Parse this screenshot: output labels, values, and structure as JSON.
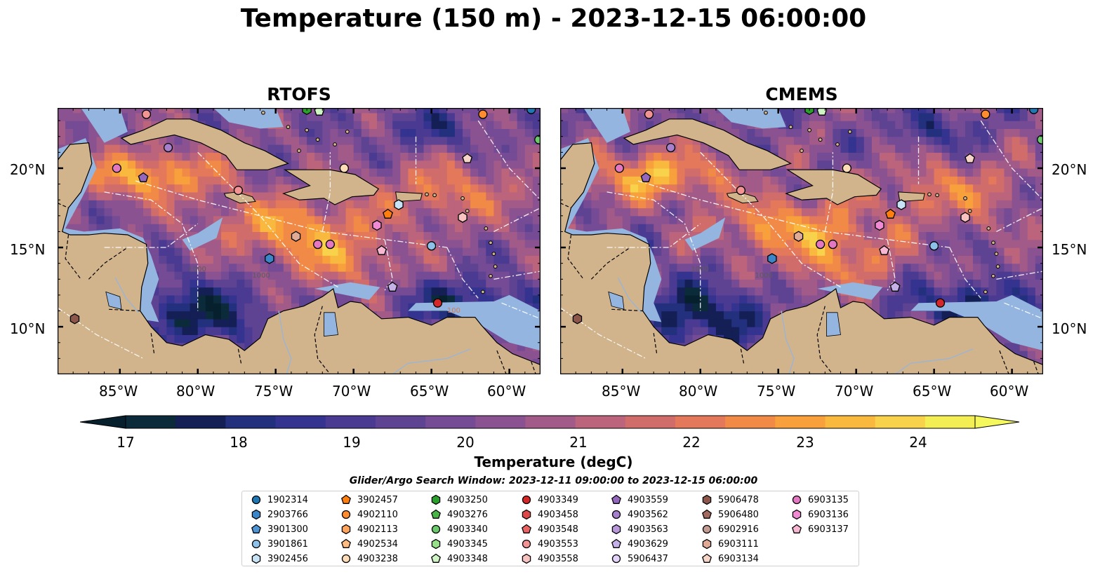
{
  "title": "Temperature (150 m) - 2023-12-15 06:00:00",
  "panels": [
    {
      "title": "RTOFS"
    },
    {
      "title": "CMEMS"
    }
  ],
  "colorbar": {
    "label": "Temperature (degC)",
    "ticks": [
      "17",
      "18",
      "19",
      "20",
      "21",
      "22",
      "23",
      "24"
    ],
    "colors": [
      "#0b2a3a",
      "#141f55",
      "#23307e",
      "#34338f",
      "#4a3a92",
      "#5f4393",
      "#744b94",
      "#8a5291",
      "#a25a88",
      "#bb647b",
      "#d06d6b",
      "#e3785a",
      "#f18a47",
      "#f7a03c",
      "#f9b83e",
      "#f7d24a",
      "#f4ee55"
    ],
    "extend_low": "#06202e",
    "extend_high": "#f4f85c"
  },
  "map": {
    "lon_labels": [
      "85°W",
      "80°W",
      "75°W",
      "70°W",
      "65°W",
      "60°W"
    ],
    "lat_labels": [
      "20°N",
      "15°N",
      "10°N"
    ],
    "contour_labels": [
      "1000",
      "1000",
      "100"
    ]
  },
  "legend": {
    "title": "Glider/Argo Search Window: 2023-12-11 09:00:00 to 2023-12-15 06:00:00",
    "items": [
      {
        "label": "1902314",
        "marker": "circle",
        "color": "#1f77b4"
      },
      {
        "label": "2903766",
        "marker": "hexagon",
        "color": "#3a86c8"
      },
      {
        "label": "3901300",
        "marker": "pentagon",
        "color": "#4e95d6"
      },
      {
        "label": "3901861",
        "marker": "circle",
        "color": "#8ec1ea"
      },
      {
        "label": "3902456",
        "marker": "hexagon",
        "color": "#c7e4f7"
      },
      {
        "label": "3902457",
        "marker": "pentagon",
        "color": "#ff7f0e"
      },
      {
        "label": "4902110",
        "marker": "circle",
        "color": "#ff8c2e"
      },
      {
        "label": "4902113",
        "marker": "hexagon",
        "color": "#ffa45c"
      },
      {
        "label": "4902534",
        "marker": "pentagon",
        "color": "#ffbb80"
      },
      {
        "label": "4903238",
        "marker": "circle",
        "color": "#ffdcb8"
      },
      {
        "label": "4903250",
        "marker": "hexagon",
        "color": "#2ca02c"
      },
      {
        "label": "4903276",
        "marker": "pentagon",
        "color": "#47b647"
      },
      {
        "label": "4903340",
        "marker": "circle",
        "color": "#6cc96c"
      },
      {
        "label": "4903345",
        "marker": "hexagon",
        "color": "#98df8a"
      },
      {
        "label": "4903348",
        "marker": "pentagon",
        "color": "#cff5c5"
      },
      {
        "label": "4903349",
        "marker": "circle",
        "color": "#d62728"
      },
      {
        "label": "4903458",
        "marker": "hexagon",
        "color": "#e04848"
      },
      {
        "label": "4903548",
        "marker": "pentagon",
        "color": "#ea6464"
      },
      {
        "label": "4903553",
        "marker": "circle",
        "color": "#f29494"
      },
      {
        "label": "4903558",
        "marker": "hexagon",
        "color": "#f8c2c0"
      },
      {
        "label": "4903559",
        "marker": "pentagon",
        "color": "#9467bd"
      },
      {
        "label": "4903562",
        "marker": "circle",
        "color": "#a680cc"
      },
      {
        "label": "4903563",
        "marker": "hexagon",
        "color": "#b898db"
      },
      {
        "label": "4903629",
        "marker": "pentagon",
        "color": "#c5b0e8"
      },
      {
        "label": "5906437",
        "marker": "circle",
        "color": "#e3d2fa"
      },
      {
        "label": "5906478",
        "marker": "hexagon",
        "color": "#8c564b"
      },
      {
        "label": "5906480",
        "marker": "pentagon",
        "color": "#a36b5f"
      },
      {
        "label": "6902916",
        "marker": "circle",
        "color": "#c49c94"
      },
      {
        "label": "6903111",
        "marker": "hexagon",
        "color": "#e0aa96"
      },
      {
        "label": "6903134",
        "marker": "pentagon",
        "color": "#f7d4c8"
      },
      {
        "label": "6903135",
        "marker": "circle",
        "color": "#e377c2"
      },
      {
        "label": "6903136",
        "marker": "hexagon",
        "color": "#f08ad2"
      },
      {
        "label": "6903137",
        "marker": "pentagon",
        "color": "#f7b6d2"
      }
    ]
  },
  "chart_data": [
    {
      "type": "heatmap",
      "title": "RTOFS",
      "variable": "Temperature (150 m)",
      "units": "degC",
      "time": "2023-12-15 06:00:00",
      "x_ticks": [
        "85°W",
        "80°W",
        "75°W",
        "70°W",
        "65°W",
        "60°W"
      ],
      "y_ticks": [
        "20°N",
        "15°N",
        "10°N"
      ],
      "xlim": [
        -89,
        -58
      ],
      "ylim": [
        7,
        23.8
      ],
      "color_range": [
        16.5,
        24.5
      ],
      "floats": [
        {
          "id": "1902314",
          "lon": -58.6,
          "lat": 23.7
        },
        {
          "id": "6903135",
          "lon": -85.2,
          "lat": 20.0
        },
        {
          "id": "4903559",
          "lon": -83.5,
          "lat": 19.4
        },
        {
          "id": "4903562",
          "lon": -81.9,
          "lat": 21.3
        },
        {
          "id": "4903553",
          "lon": -83.3,
          "lat": 23.4
        },
        {
          "id": "4903553",
          "lon": -77.4,
          "lat": 18.6
        },
        {
          "id": "4903250",
          "lon": -73.0,
          "lat": 23.7
        },
        {
          "id": "4903348",
          "lon": -72.2,
          "lat": 23.6
        },
        {
          "id": "4902110",
          "lon": -61.7,
          "lat": 23.4
        },
        {
          "id": "6903134",
          "lon": -62.7,
          "lat": 20.6
        },
        {
          "id": "3902457",
          "lon": -67.8,
          "lat": 17.1
        },
        {
          "id": "3902456",
          "lon": -67.1,
          "lat": 17.7
        },
        {
          "id": "4903558",
          "lon": -63.0,
          "lat": 16.9
        },
        {
          "id": "6903136",
          "lon": -68.5,
          "lat": 16.4
        },
        {
          "id": "6903111",
          "lon": -73.7,
          "lat": 15.7
        },
        {
          "id": "6903135",
          "lon": -72.3,
          "lat": 15.2
        },
        {
          "id": "6903135",
          "lon": -71.5,
          "lat": 15.2
        },
        {
          "id": "6903137",
          "lon": -68.2,
          "lat": 14.8
        },
        {
          "id": "3901861",
          "lon": -65.0,
          "lat": 15.1
        },
        {
          "id": "2903766",
          "lon": -75.4,
          "lat": 14.3
        },
        {
          "id": "4903629",
          "lon": -67.5,
          "lat": 12.5
        },
        {
          "id": "4903349",
          "lon": -64.6,
          "lat": 11.5
        },
        {
          "id": "5906478",
          "lon": -87.9,
          "lat": 10.5
        },
        {
          "id": "4903238",
          "lon": -70.6,
          "lat": 20.0
        },
        {
          "id": "4903340",
          "lon": -58.1,
          "lat": 21.8
        }
      ]
    },
    {
      "type": "heatmap",
      "title": "CMEMS",
      "variable": "Temperature (150 m)",
      "units": "degC",
      "time": "2023-12-15 06:00:00",
      "x_ticks": [
        "85°W",
        "80°W",
        "75°W",
        "70°W",
        "65°W",
        "60°W"
      ],
      "y_ticks": [
        "20°N",
        "15°N",
        "10°N"
      ],
      "xlim": [
        -89,
        -58
      ],
      "ylim": [
        7,
        23.8
      ],
      "color_range": [
        16.5,
        24.5
      ],
      "floats": "same as RTOFS"
    }
  ]
}
